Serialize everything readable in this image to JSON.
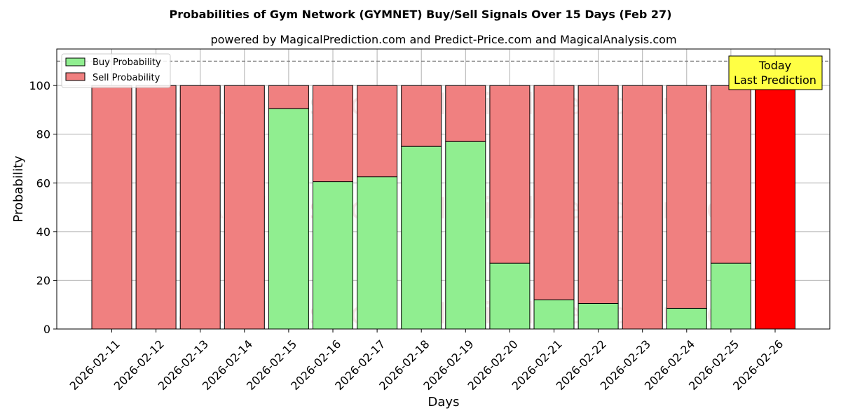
{
  "chart_data": {
    "type": "bar",
    "stacked": true,
    "title": "Probabilities of Gym Network (GYMNET) Buy/Sell Signals Over 15 Days (Feb 27)",
    "subtitle": "powered by MagicalPrediction.com and Predict-Price.com and MagicalAnalysis.com",
    "xlabel": "Days",
    "ylabel": "Probability",
    "ylim": [
      0,
      115
    ],
    "yticks": [
      0,
      20,
      40,
      60,
      80,
      100
    ],
    "grid": true,
    "legend_position": "top-left",
    "reference_line": 110,
    "categories": [
      "2026-02-11",
      "2026-02-12",
      "2026-02-13",
      "2026-02-14",
      "2026-02-15",
      "2026-02-16",
      "2026-02-17",
      "2026-02-18",
      "2026-02-19",
      "2026-02-20",
      "2026-02-21",
      "2026-02-22",
      "2026-02-23",
      "2026-02-24",
      "2026-02-25",
      "2026-02-26"
    ],
    "series": [
      {
        "name": "Buy Probability",
        "color": "#90ee90",
        "values": [
          0,
          0,
          0,
          0,
          90.5,
          60.5,
          62.5,
          75,
          77,
          27,
          12,
          10.5,
          0,
          8.5,
          27,
          0
        ]
      },
      {
        "name": "Sell Probability",
        "color": "#f08080",
        "values": [
          100,
          100,
          100,
          100,
          9.5,
          39.5,
          37.5,
          25,
          23,
          73,
          88,
          89.5,
          100,
          91.5,
          73,
          100
        ]
      }
    ],
    "highlight": {
      "category": "2026-02-26",
      "color": "#ff0000",
      "value": 100
    },
    "annotation": {
      "lines": [
        "Today",
        "Last Prediction"
      ],
      "color": "#ffff44"
    },
    "watermarks": [
      "MagicalAnalysis.com",
      "MagicalPrediction.com"
    ]
  }
}
